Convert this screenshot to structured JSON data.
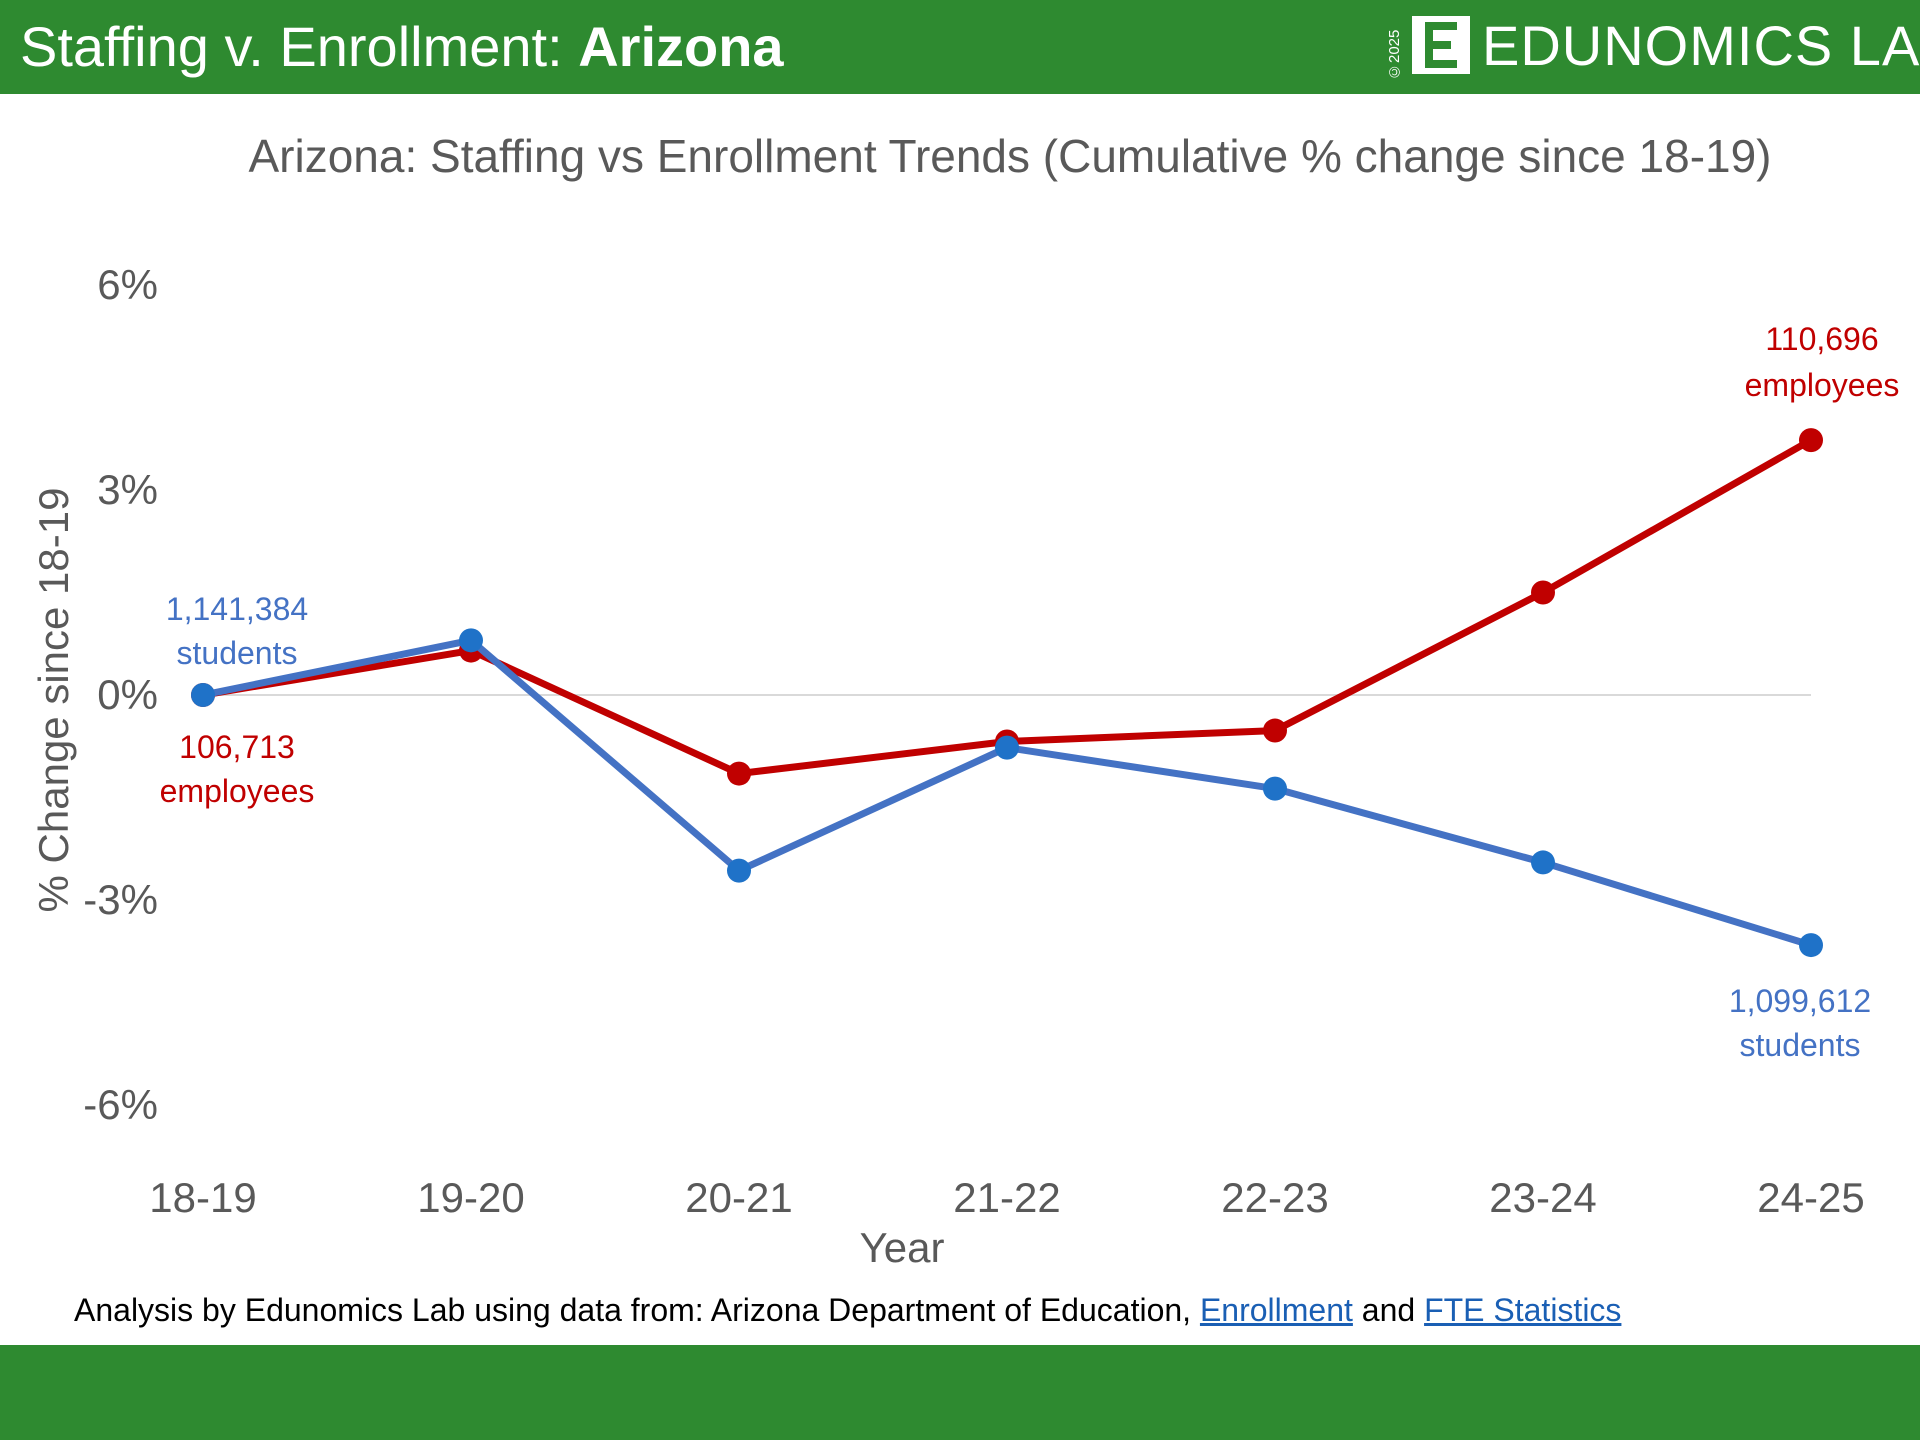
{
  "header": {
    "title_prefix": "Staffing v. Enrollment: ",
    "title_bold": "Arizona",
    "logo_copyright": "©2025",
    "logo_letter": "E",
    "logo_text": "EDUNOMICS LAB"
  },
  "source": {
    "prefix": "Analysis by Edunomics Lab using data from: Arizona Department of Education, ",
    "link1": "Enrollment",
    "middle": " and ",
    "link2": "FTE Statistics"
  },
  "colors": {
    "header_green": "#2e8a30",
    "students": "#4472c4",
    "students_marker": "#1f72c8",
    "employees": "#c00000"
  },
  "chart_data": {
    "type": "line",
    "title": "Arizona: Staffing vs Enrollment Trends (Cumulative % change since 18-19)",
    "xlabel": "Year",
    "ylabel": "% Change since 18-19",
    "categories": [
      "18-19",
      "19-20",
      "20-21",
      "21-22",
      "22-23",
      "23-24",
      "24-25"
    ],
    "ylim": [
      -6,
      6
    ],
    "yticks": [
      6,
      3,
      0,
      -3,
      -6
    ],
    "ytick_labels": [
      "6%",
      "3%",
      "0%",
      "-3%",
      "-6%"
    ],
    "grid": false,
    "zero_line": true,
    "series": [
      {
        "key": "employees",
        "values": [
          0,
          0.65,
          -1.15,
          -0.68,
          -0.52,
          1.5,
          3.73
        ]
      },
      {
        "key": "students",
        "values": [
          0,
          0.8,
          -2.57,
          -0.77,
          -1.37,
          -2.45,
          -3.66
        ]
      }
    ],
    "annotations": {
      "students_start": [
        "1,141,384",
        "students"
      ],
      "employees_start": [
        "106,713",
        "employees"
      ],
      "employees_end": [
        "110,696",
        "employees"
      ],
      "students_end": [
        "1,099,612",
        "students"
      ]
    }
  }
}
